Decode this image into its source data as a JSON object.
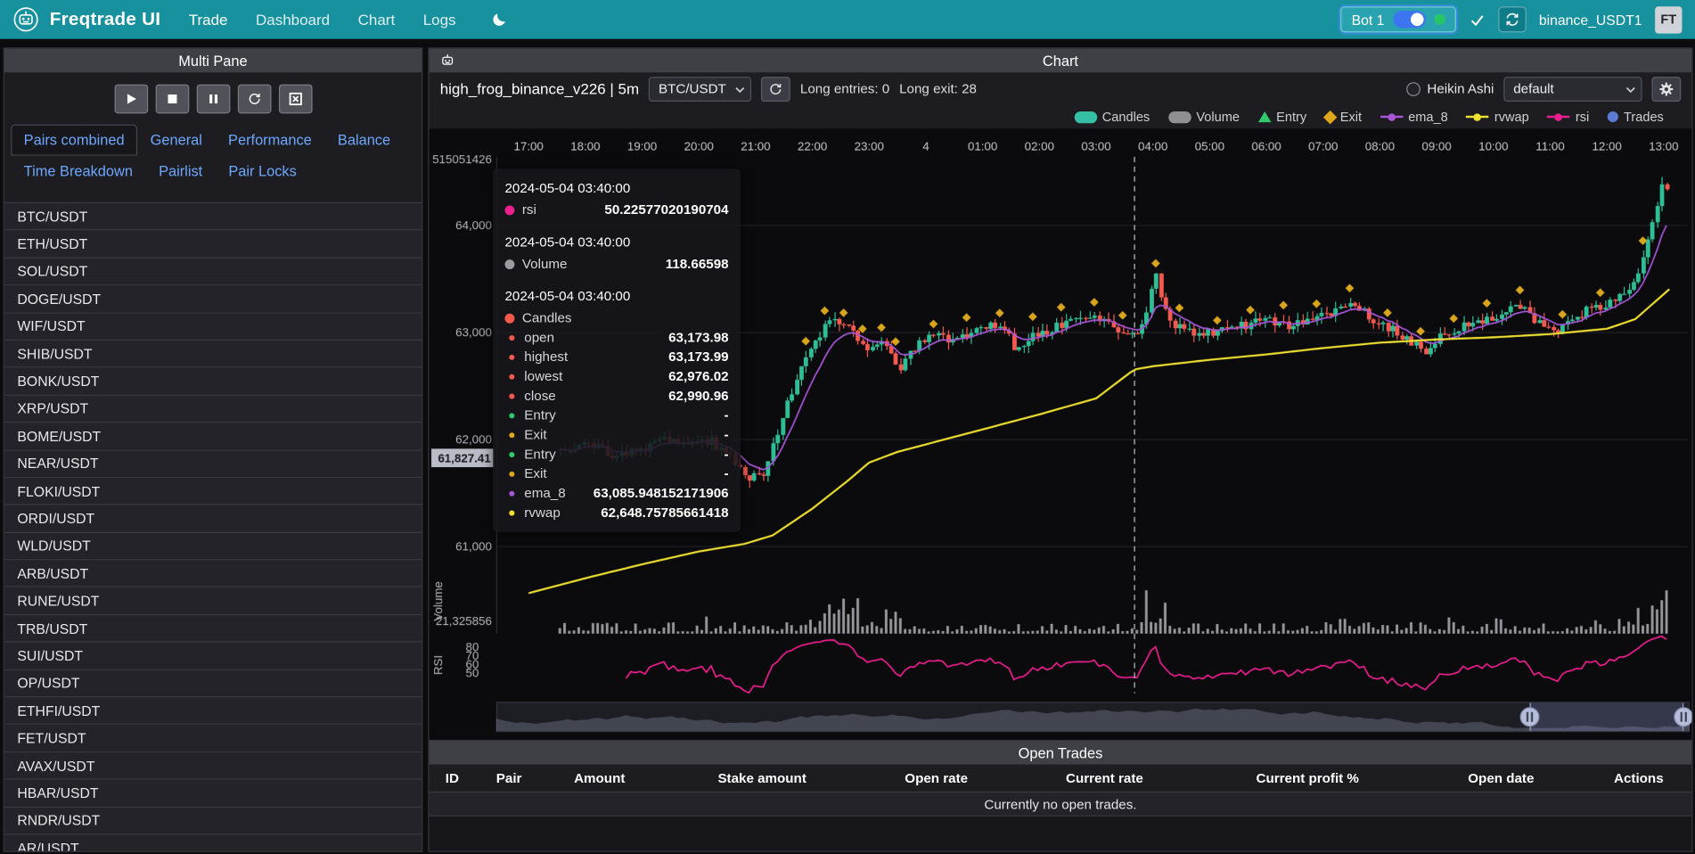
{
  "navbar": {
    "brand": "Freqtrade UI",
    "links": [
      "Trade",
      "Dashboard",
      "Chart",
      "Logs"
    ],
    "active_link": "Trade",
    "bot": {
      "name": "Bot 1"
    },
    "exchange": "binance_USDT1",
    "avatar": "FT"
  },
  "multi_pane": {
    "title": "Multi Pane",
    "tabs_row1": [
      "Pairs combined",
      "General",
      "Performance",
      "Balance"
    ],
    "tabs_row2": [
      "Time Breakdown",
      "Pairlist",
      "Pair Locks"
    ],
    "active_tab": "Pairs combined",
    "pairs": [
      "BTC/USDT",
      "ETH/USDT",
      "SOL/USDT",
      "DOGE/USDT",
      "WIF/USDT",
      "SHIB/USDT",
      "BONK/USDT",
      "XRP/USDT",
      "BOME/USDT",
      "NEAR/USDT",
      "FLOKI/USDT",
      "ORDI/USDT",
      "WLD/USDT",
      "ARB/USDT",
      "RUNE/USDT",
      "TRB/USDT",
      "SUI/USDT",
      "OP/USDT",
      "ETHFI/USDT",
      "FET/USDT",
      "AVAX/USDT",
      "HBAR/USDT",
      "RNDR/USDT",
      "AR/USDT"
    ]
  },
  "chart_panel": {
    "title": "Chart",
    "strategy": "high_frog_binance_v226 | 5m",
    "pair_select": "BTC/USDT",
    "entries_label": "Long entries: 0",
    "exits_label": "Long exit: 28",
    "heikin_label": "Heikin Ashi",
    "plot_config_select": "default",
    "legend": [
      {
        "label": "Candles",
        "type": "roundrect",
        "color": "#35bfa4"
      },
      {
        "label": "Volume",
        "type": "roundrect",
        "color": "#8f8f94"
      },
      {
        "label": "Entry",
        "type": "triangle",
        "color": "#2fca6e"
      },
      {
        "label": "Exit",
        "type": "diamond",
        "color": "#e0a71c"
      },
      {
        "label": "ema_8",
        "type": "line",
        "color": "#a855d8"
      },
      {
        "label": "rvwap",
        "type": "line",
        "color": "#f0e130"
      },
      {
        "label": "rsi",
        "type": "line",
        "color": "#ec1f8e"
      },
      {
        "label": "Trades",
        "type": "circle",
        "color": "#5b7bd5"
      }
    ]
  },
  "tooltip": {
    "sections": [
      {
        "time": "2024-05-04 03:40:00",
        "rows": [
          {
            "color": "#ec1f8e",
            "label": "rsi",
            "value": "50.22577020190704"
          }
        ]
      },
      {
        "time": "2024-05-04 03:40:00",
        "rows": [
          {
            "color": "#9a9aa0",
            "label": "Volume",
            "value": "118.66598"
          }
        ]
      },
      {
        "time": "2024-05-04 03:40:00",
        "rows": [
          {
            "color": "#f4594e",
            "label": "Candles",
            "value": ""
          },
          {
            "sub": true,
            "color": "#f4594e",
            "label": "open",
            "value": "63,173.98"
          },
          {
            "sub": true,
            "color": "#f4594e",
            "label": "highest",
            "value": "63,173.99"
          },
          {
            "sub": true,
            "color": "#f4594e",
            "label": "lowest",
            "value": "62,976.02"
          },
          {
            "sub": true,
            "color": "#f4594e",
            "label": "close",
            "value": "62,990.96"
          },
          {
            "sub": true,
            "color": "#2fca6e",
            "label": "Entry",
            "value": "-"
          },
          {
            "sub": true,
            "color": "#e0a71c",
            "label": "Exit",
            "value": "-"
          },
          {
            "sub": true,
            "color": "#2fca6e",
            "label": "Entry",
            "value": "-"
          },
          {
            "sub": true,
            "color": "#e0a71c",
            "label": "Exit",
            "value": "-"
          },
          {
            "sub": true,
            "color": "#a855d8",
            "label": "ema_8",
            "value": "63,085.948152171906"
          },
          {
            "sub": true,
            "color": "#f0e130",
            "label": "rvwap",
            "value": "62,648.75785661418"
          }
        ]
      }
    ]
  },
  "open_trades": {
    "title": "Open Trades",
    "columns": [
      "ID",
      "Pair",
      "Amount",
      "Stake amount",
      "Open rate",
      "Current rate",
      "Current profit %",
      "Open date",
      "Actions"
    ],
    "empty_message": "Currently no open trades."
  },
  "chart_data": {
    "type": "candlestick",
    "pair": "BTC/USDT",
    "timeframe": "5m",
    "x_axis": {
      "tick_labels": [
        "17:00",
        "18:00",
        "19:00",
        "20:00",
        "21:00",
        "22:00",
        "23:00",
        "4",
        "01:00",
        "02:00",
        "03:00",
        "04:00",
        "05:00",
        "06:00",
        "07:00",
        "08:00",
        "09:00",
        "10:00",
        "11:00",
        "12:00",
        "13:00"
      ]
    },
    "y_axis": {
      "price_ticks": [
        "64,000",
        "63,000",
        "62,000",
        "61,000"
      ],
      "price_tick_values": [
        64000,
        63000,
        62000,
        61000
      ],
      "top_left_label": "515051426",
      "volume_axis_label": "21,325856",
      "volume_axis_title": "Volume",
      "rsi_axis_title": "RSI",
      "rsi_ticks": [
        80,
        70,
        60,
        50
      ]
    },
    "candle_start_hour": 0.55,
    "candle_end_hour": 20.1,
    "price_anchors": [
      [
        0.6,
        61900
      ],
      [
        1.0,
        61950
      ],
      [
        1.5,
        61850
      ],
      [
        2.0,
        61900
      ],
      [
        2.4,
        61980
      ],
      [
        2.8,
        61920
      ],
      [
        3.2,
        61980
      ],
      [
        3.6,
        61800
      ],
      [
        3.9,
        61650
      ],
      [
        4.1,
        61620
      ],
      [
        4.35,
        62000
      ],
      [
        4.6,
        62400
      ],
      [
        4.85,
        62700
      ],
      [
        5.1,
        62950
      ],
      [
        5.35,
        63120
      ],
      [
        5.5,
        63100
      ],
      [
        5.75,
        62950
      ],
      [
        6.0,
        62830
      ],
      [
        6.3,
        62900
      ],
      [
        6.55,
        62650
      ],
      [
        6.8,
        62850
      ],
      [
        7.1,
        63000
      ],
      [
        7.5,
        62920
      ],
      [
        7.9,
        63000
      ],
      [
        8.3,
        63080
      ],
      [
        8.55,
        62870
      ],
      [
        8.9,
        62960
      ],
      [
        9.3,
        63060
      ],
      [
        9.7,
        63150
      ],
      [
        10.0,
        63120
      ],
      [
        10.3,
        63040
      ],
      [
        10.55,
        62990
      ],
      [
        10.67,
        62990
      ],
      [
        10.85,
        63100
      ],
      [
        11.05,
        63550
      ],
      [
        11.15,
        63250
      ],
      [
        11.4,
        63050
      ],
      [
        11.8,
        62960
      ],
      [
        12.2,
        63010
      ],
      [
        12.6,
        63060
      ],
      [
        13.0,
        63100
      ],
      [
        13.4,
        63060
      ],
      [
        13.8,
        63120
      ],
      [
        14.2,
        63200
      ],
      [
        14.55,
        63260
      ],
      [
        14.8,
        63150
      ],
      [
        15.1,
        63050
      ],
      [
        15.5,
        62930
      ],
      [
        15.75,
        62800
      ],
      [
        16.0,
        62950
      ],
      [
        16.4,
        63050
      ],
      [
        16.8,
        63120
      ],
      [
        17.2,
        63180
      ],
      [
        17.5,
        63250
      ],
      [
        17.8,
        63080
      ],
      [
        18.1,
        63000
      ],
      [
        18.45,
        63150
      ],
      [
        18.8,
        63230
      ],
      [
        19.1,
        63280
      ],
      [
        19.4,
        63400
      ],
      [
        19.65,
        63700
      ],
      [
        19.85,
        64100
      ],
      [
        20.0,
        64400
      ],
      [
        20.1,
        64300
      ]
    ],
    "rvwap_anchors": [
      [
        0,
        60560
      ],
      [
        1,
        60700
      ],
      [
        2,
        60830
      ],
      [
        3,
        60950
      ],
      [
        3.8,
        61020
      ],
      [
        4.3,
        61100
      ],
      [
        5,
        61350
      ],
      [
        5.6,
        61600
      ],
      [
        6,
        61780
      ],
      [
        6.5,
        61880
      ],
      [
        7,
        61950
      ],
      [
        8,
        62090
      ],
      [
        9,
        62230
      ],
      [
        10,
        62380
      ],
      [
        10.67,
        62649
      ],
      [
        11,
        62680
      ],
      [
        12,
        62740
      ],
      [
        13,
        62790
      ],
      [
        14,
        62850
      ],
      [
        15,
        62900
      ],
      [
        16,
        62930
      ],
      [
        17,
        62950
      ],
      [
        18,
        62980
      ],
      [
        19,
        63030
      ],
      [
        19.5,
        63120
      ],
      [
        20.1,
        63400
      ]
    ],
    "crosshair_hour": 10.6667,
    "crosshair_price_label": "61,827.41",
    "long_entries": 0,
    "long_exits": 28,
    "exit_marker_hours": [
      4.9,
      5.25,
      5.55,
      5.9,
      6.2,
      6.5,
      7.1,
      7.7,
      8.3,
      8.9,
      9.4,
      10.0,
      10.5,
      11.05,
      11.5,
      12.1,
      12.7,
      13.3,
      13.9,
      14.5,
      15.1,
      15.7,
      16.3,
      16.9,
      17.5,
      18.2,
      18.9,
      19.6
    ],
    "navigator": {
      "window": [
        0.866,
        0.995
      ]
    },
    "colors": {
      "up": "#2ebd95",
      "down": "#f4594e",
      "volume": "#96969c",
      "ema_8": "#a855d8",
      "rvwap": "#f0e130",
      "rsi": "#ec1f8e",
      "exit": "#d9a51d",
      "crosshair_label_bg": "#b9bcc6"
    }
  }
}
